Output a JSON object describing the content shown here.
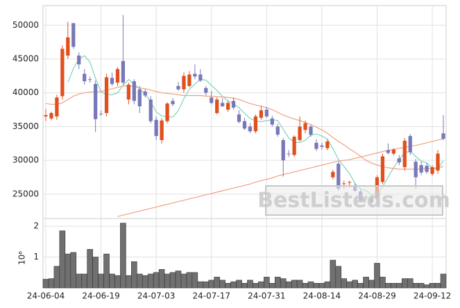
{
  "chart_data": {
    "type": "candlestick",
    "watermark": "BestListeds.com",
    "categories": [
      "24-06-04",
      null,
      null,
      null,
      null,
      null,
      null,
      null,
      null,
      null,
      "24-06-19",
      null,
      null,
      null,
      null,
      null,
      null,
      null,
      null,
      null,
      "24-07-03",
      null,
      null,
      null,
      null,
      null,
      null,
      null,
      null,
      null,
      "24-07-17",
      null,
      null,
      null,
      null,
      null,
      null,
      null,
      null,
      null,
      "24-07-31",
      null,
      null,
      null,
      null,
      null,
      null,
      null,
      null,
      null,
      "24-08-14",
      null,
      null,
      null,
      null,
      null,
      null,
      null,
      null,
      null,
      "24-08-29",
      null,
      null,
      null,
      null,
      null,
      null,
      null,
      null,
      null,
      "24-09-12",
      null,
      null
    ],
    "open": [
      36500,
      36200,
      36500,
      39500,
      45500,
      50300,
      45500,
      42800,
      42000,
      41300,
      36900,
      37000,
      42200,
      41500,
      44700,
      39000,
      41700,
      40500,
      40200,
      39000,
      36000,
      33000,
      35800,
      38800,
      41000,
      40500,
      41000,
      42800,
      42700,
      40700,
      39300,
      37000,
      38500,
      37500,
      38800,
      36800,
      35800,
      35000,
      34300,
      36300,
      37500,
      36200,
      35000,
      33000,
      31000,
      30800,
      33000,
      34500,
      35000,
      32600,
      32200,
      31800,
      27500,
      29500,
      26500,
      26700,
      26300,
      25400,
      24600,
      24400,
      24400,
      26800,
      31500,
      31000,
      30300,
      29000,
      33600,
      29800,
      29300,
      29200,
      28000,
      28500,
      34000
    ],
    "high": [
      37600,
      37200,
      39700,
      47000,
      50500,
      50300,
      46000,
      43500,
      42400,
      41800,
      37400,
      42800,
      43000,
      43800,
      51500,
      41500,
      42000,
      41000,
      40500,
      39500,
      36500,
      36200,
      38600,
      39200,
      41600,
      43000,
      43200,
      44200,
      43500,
      41000,
      40300,
      39300,
      39200,
      38800,
      39300,
      37400,
      36300,
      35500,
      36800,
      38100,
      37900,
      36600,
      35400,
      33300,
      31500,
      33700,
      36500,
      35900,
      35300,
      33100,
      32600,
      33100,
      28600,
      29800,
      27000,
      27000,
      26600,
      25800,
      24800,
      24700,
      27800,
      31000,
      32500,
      31800,
      30800,
      33300,
      33900,
      30200,
      29800,
      29600,
      29300,
      31500,
      36700
    ],
    "low": [
      35800,
      35900,
      36000,
      39000,
      45000,
      46500,
      43500,
      41200,
      41500,
      34200,
      36600,
      36500,
      41000,
      41000,
      41200,
      38300,
      38300,
      37000,
      39300,
      35500,
      33000,
      32500,
      35500,
      38000,
      40300,
      40000,
      40800,
      42000,
      41600,
      39600,
      38300,
      36800,
      37900,
      37200,
      37500,
      35500,
      34500,
      34000,
      34000,
      36000,
      36300,
      35000,
      33500,
      27600,
      30500,
      30500,
      32800,
      34000,
      33500,
      31400,
      31600,
      31500,
      27200,
      25500,
      25800,
      26000,
      25300,
      23800,
      24100,
      23600,
      24000,
      26500,
      30900,
      30700,
      29300,
      28500,
      30800,
      25800,
      27800,
      28000,
      27700,
      28000,
      33000
    ],
    "close": [
      36700,
      37000,
      39300,
      46500,
      48200,
      46800,
      44200,
      41700,
      41900,
      36100,
      36800,
      42300,
      41300,
      43500,
      41500,
      41200,
      38800,
      38000,
      39600,
      35800,
      33600,
      35900,
      38400,
      38300,
      40500,
      42500,
      42700,
      42400,
      41800,
      40000,
      38500,
      39000,
      38000,
      38500,
      37800,
      35700,
      34700,
      34300,
      36500,
      37400,
      36500,
      35300,
      33800,
      30000,
      30900,
      33500,
      35000,
      35500,
      33800,
      31700,
      32000,
      32800,
      28300,
      25800,
      26600,
      26800,
      25500,
      24100,
      24500,
      23800,
      27500,
      30600,
      31100,
      31600,
      29700,
      32900,
      31200,
      27500,
      28200,
      28300,
      29000,
      31000,
      33200
    ],
    "up_color": "#e0501e",
    "down_color": "#7878b8",
    "moving_averages": [
      {
        "color": "#7dd3b5",
        "values": [
          null,
          null,
          null,
          null,
          41540,
          43560,
          45000,
          45480,
          44560,
          42140,
          40140,
          39760,
          39680,
          40000,
          41080,
          41960,
          41260,
          40600,
          39820,
          38680,
          37160,
          36580,
          36460,
          36400,
          37340,
          39120,
          40480,
          41280,
          41980,
          41880,
          41080,
          40340,
          39460,
          38800,
          38360,
          37800,
          36940,
          36200,
          35840,
          35720,
          35880,
          36000,
          35900,
          34600,
          33300,
          32700,
          32640,
          32980,
          33740,
          33900,
          33600,
          33160,
          31720,
          30120,
          29100,
          28060,
          26600,
          25760,
          25500,
          24940,
          25080,
          26100,
          27500,
          28920,
          30100,
          31180,
          31300,
          30580,
          29900,
          29620,
          28840,
          28800,
          29940
        ]
      },
      {
        "color": "#f0a080",
        "values": [
          38400,
          38300,
          38300,
          38500,
          39000,
          39500,
          39800,
          40000,
          40100,
          40100,
          40200,
          40400,
          40600,
          40800,
          41000,
          41000,
          40900,
          40700,
          40600,
          40400,
          40200,
          40000,
          39900,
          39800,
          39700,
          39600,
          39600,
          39600,
          39600,
          39500,
          39500,
          39400,
          39400,
          39300,
          39200,
          39000,
          38700,
          38400,
          38200,
          38000,
          37800,
          37500,
          37100,
          36700,
          36400,
          36100,
          35900,
          35600,
          35300,
          34900,
          34500,
          34000,
          33400,
          32800,
          32300,
          31700,
          31200,
          30600,
          30000,
          29600,
          29300,
          29100,
          28900,
          28800,
          28700,
          28700,
          28700,
          28700,
          28700,
          28800,
          28800,
          28900,
          29100
        ]
      },
      {
        "color": "#f0a080",
        "values": [
          null,
          null,
          null,
          null,
          null,
          null,
          null,
          null,
          null,
          null,
          null,
          null,
          null,
          21700,
          21900,
          22100,
          22300,
          22500,
          22700,
          22900,
          23100,
          23300,
          23500,
          23700,
          23900,
          24100,
          24300,
          24500,
          24700,
          24900,
          25100,
          25300,
          25500,
          25700,
          25900,
          26100,
          26300,
          26500,
          26800,
          27000,
          27200,
          27400,
          27700,
          27900,
          28100,
          28300,
          28500,
          28700,
          28900,
          29100,
          29300,
          29500,
          29700,
          29900,
          30000,
          30100,
          30300,
          30500,
          30700,
          30900,
          31100,
          31300,
          31500,
          31600,
          31800,
          31900,
          32100,
          32200,
          32400,
          32600,
          32800,
          33000,
          33200
        ]
      }
    ],
    "ylim": [
      21400,
      52900
    ],
    "yticks": [
      25000,
      30000,
      35000,
      40000,
      45000,
      50000
    ],
    "grid": true,
    "volume": {
      "type": "bar",
      "color": "#707070",
      "ylabel": "10⁶",
      "values": [
        0.28,
        0.3,
        0.7,
        1.85,
        1.1,
        1.15,
        0.45,
        0.45,
        1.25,
        1.0,
        0.45,
        1.1,
        0.45,
        0.4,
        2.1,
        0.4,
        0.85,
        0.45,
        0.4,
        0.45,
        0.5,
        0.6,
        0.45,
        0.5,
        0.55,
        0.45,
        0.5,
        0.5,
        0.2,
        0.2,
        0.25,
        0.35,
        0.25,
        0.15,
        0.2,
        0.25,
        0.15,
        0.25,
        0.15,
        0.2,
        0.35,
        0.15,
        0.35,
        0.3,
        0.2,
        0.25,
        0.25,
        0.15,
        0.2,
        0.15,
        0.15,
        0.2,
        0.9,
        0.7,
        0.3,
        0.2,
        0.25,
        0.15,
        0.35,
        0.25,
        0.8,
        0.35,
        0.15,
        0.15,
        0.15,
        0.3,
        0.3,
        0.15,
        0.15,
        0.1,
        0.15,
        0.15,
        0.45
      ],
      "ylim": [
        0,
        2.25
      ],
      "yticks": [
        1,
        2
      ]
    }
  }
}
